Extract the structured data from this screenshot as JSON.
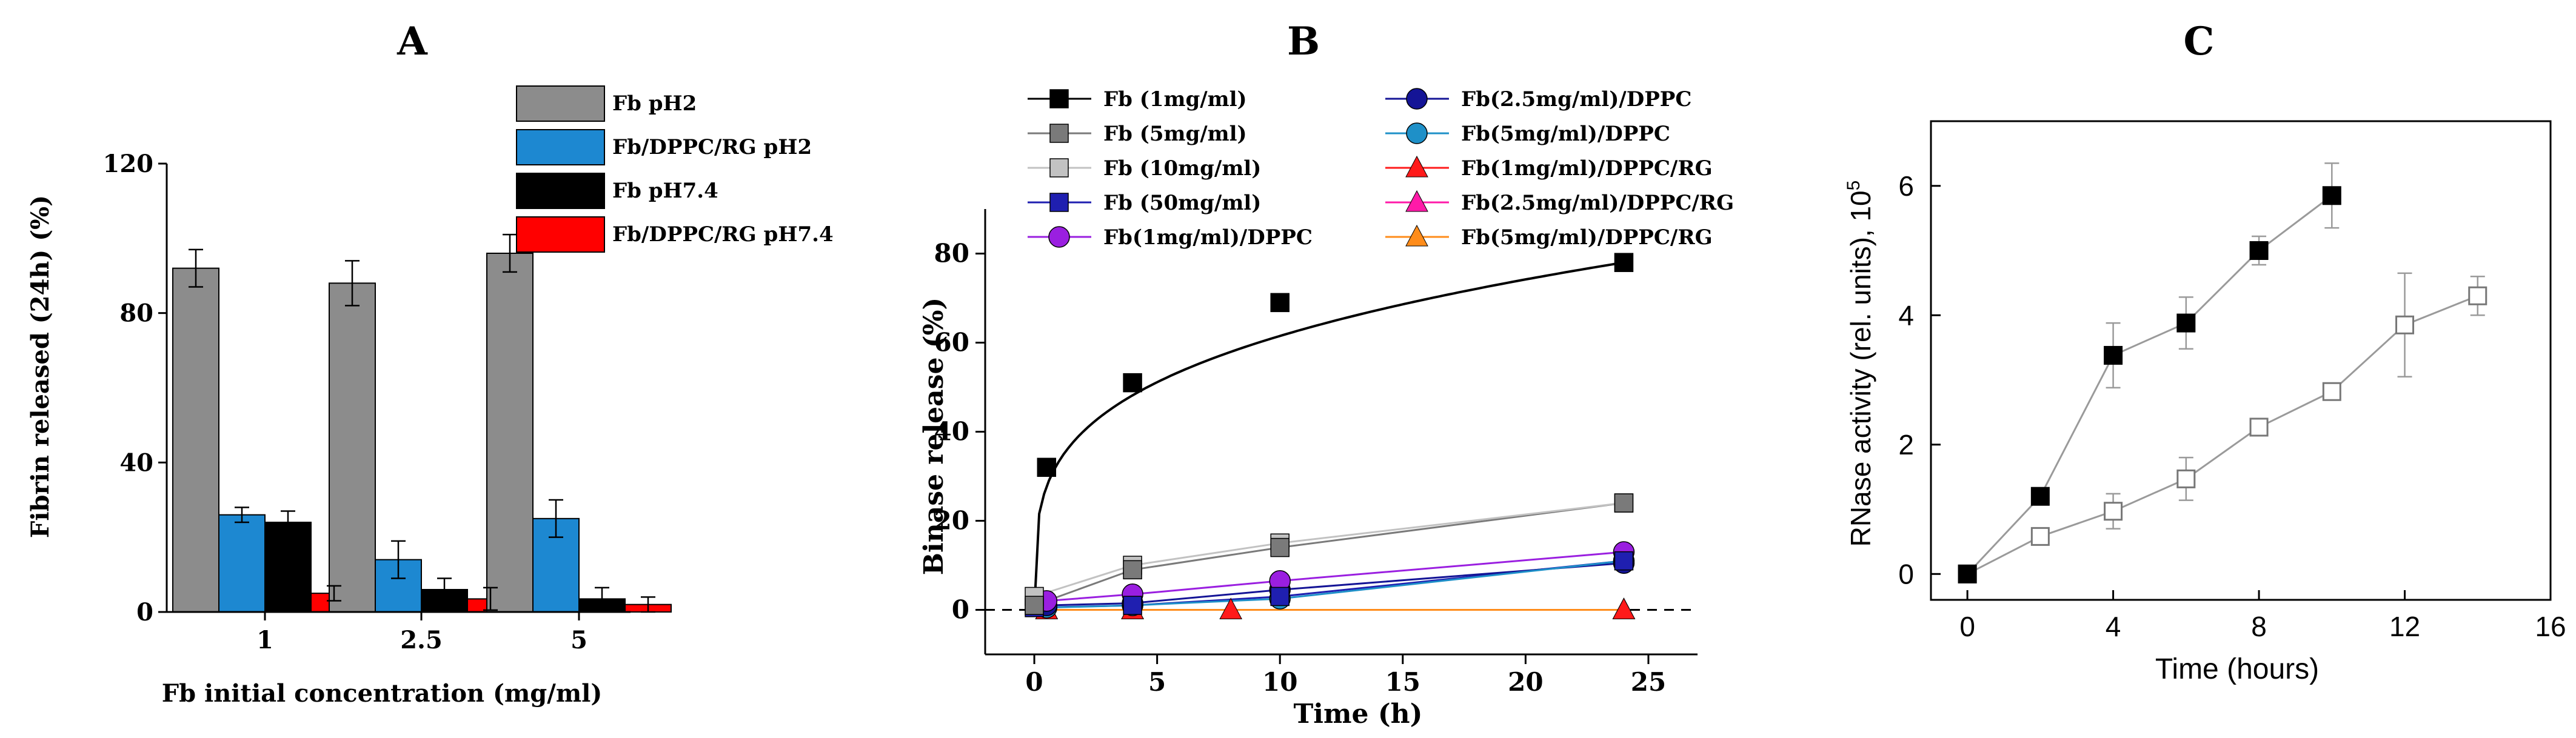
{
  "chart_data": [
    {
      "panel": "A",
      "type": "bar",
      "panel_label": "A",
      "xlabel": "Fb initial concentration (mg/ml)",
      "ylabel": "Fibrin released (24h) (%)",
      "ylim": [
        0,
        120
      ],
      "yticks": [
        "0",
        "40",
        "80",
        "120"
      ],
      "categories": [
        "1",
        "2.5",
        "5"
      ],
      "legend_position": "top-right",
      "series": [
        {
          "name": "Fb pH2",
          "color": "#8c8c8c",
          "values": [
            92,
            88,
            96
          ],
          "errors": [
            5,
            6,
            5
          ]
        },
        {
          "name": "Fb/DPPC/RG pH2",
          "color": "#1d88d1",
          "values": [
            26,
            14,
            25
          ],
          "errors": [
            2,
            5,
            5
          ]
        },
        {
          "name": "Fb pH7.4",
          "color": "#000000",
          "values": [
            24,
            6,
            3.5
          ],
          "errors": [
            3,
            3,
            3
          ]
        },
        {
          "name": "Fb/DPPC/RG pH7.4",
          "color": "#ff0000",
          "values": [
            5,
            3.5,
            2
          ],
          "errors": [
            2,
            3,
            2
          ]
        }
      ]
    },
    {
      "panel": "B",
      "type": "line",
      "panel_label": "B",
      "xlabel": "Time (h)",
      "ylabel": "Binase release (%)",
      "xlim": [
        -2,
        27
      ],
      "ylim": [
        -10,
        90
      ],
      "xticks": [
        "0",
        "5",
        "10",
        "15",
        "20",
        "25"
      ],
      "yticks": [
        "0",
        "20",
        "40",
        "60",
        "80"
      ],
      "reference_line_y": 0,
      "legend_position": "top",
      "series": [
        {
          "name": "Fb (1mg/ml)",
          "color": "#000000",
          "marker": "square",
          "x": [
            0.5,
            4,
            10,
            24
          ],
          "y": [
            32,
            51,
            69,
            78
          ]
        },
        {
          "name": "Fb (5mg/ml)",
          "color": "#7a7a7a",
          "marker": "square",
          "x": [
            0,
            4,
            10,
            24
          ],
          "y": [
            1,
            9,
            14,
            24
          ]
        },
        {
          "name": "Fb (10mg/ml)",
          "color": "#c2c2c2",
          "marker": "square",
          "x": [
            0,
            4,
            10,
            24
          ],
          "y": [
            3,
            10,
            15,
            24
          ]
        },
        {
          "name": "Fb (50mg/ml)",
          "color": "#1f1fb0",
          "marker": "square",
          "x": [
            0,
            4,
            10,
            24
          ],
          "y": [
            0.5,
            1,
            3,
            11
          ]
        },
        {
          "name": "Fb(1mg/ml)/DPPC",
          "color": "#9a1fe0",
          "marker": "circle",
          "x": [
            0.5,
            4,
            10,
            24
          ],
          "y": [
            2,
            3.5,
            6.5,
            13
          ]
        },
        {
          "name": "Fb(2.5mg/ml)/DPPC",
          "color": "#141496",
          "marker": "circle",
          "x": [
            0.5,
            4,
            10,
            24
          ],
          "y": [
            1,
            1.5,
            4.5,
            10.5
          ]
        },
        {
          "name": "Fb(5mg/ml)/DPPC",
          "color": "#1e90c8",
          "marker": "circle",
          "x": [
            0.5,
            4,
            10,
            24
          ],
          "y": [
            0.5,
            1,
            2.5,
            11
          ]
        },
        {
          "name": "Fb(1mg/ml)/DPPC/RG",
          "color": "#ff1a1a",
          "marker": "triangle",
          "x": [
            0.5,
            4,
            8,
            24
          ],
          "y": [
            0,
            0,
            0,
            0
          ]
        },
        {
          "name": "Fb(2.5mg/ml)/DPPC/RG",
          "color": "#ff1aa8",
          "marker": "triangle",
          "x": [
            0.5,
            4,
            24
          ],
          "y": [
            0,
            0,
            0
          ]
        },
        {
          "name": "Fb(5mg/ml)/DPPC/RG",
          "color": "#ff8c1a",
          "marker": "triangle",
          "x": [
            0.5,
            4,
            24
          ],
          "y": [
            0,
            0,
            0
          ]
        }
      ]
    },
    {
      "panel": "C",
      "type": "line",
      "panel_label": "C",
      "xlabel": "Time (hours)",
      "ylabel": "RNase activity (rel. units), 10",
      "ylabel_exponent": "5",
      "xlim": [
        -1,
        16
      ],
      "ylim": [
        -0.4,
        7
      ],
      "xticks": [
        "0",
        "4",
        "8",
        "12",
        "16"
      ],
      "yticks": [
        "0",
        "2",
        "4",
        "6"
      ],
      "series": [
        {
          "name": "filled",
          "color": "#000000",
          "marker": "square-filled",
          "x": [
            0,
            2,
            4,
            6,
            8,
            10
          ],
          "y": [
            0,
            1.2,
            3.38,
            3.88,
            5.0,
            5.85
          ],
          "errors": [
            0,
            0.05,
            0.5,
            0.4,
            0.22,
            0.5
          ]
        },
        {
          "name": "open",
          "color": "#888888",
          "marker": "square-open",
          "x": [
            0,
            2,
            4,
            6,
            8,
            10,
            12,
            14
          ],
          "y": [
            0,
            0.58,
            0.97,
            1.47,
            2.27,
            2.82,
            3.85,
            4.3
          ],
          "errors": [
            0,
            0.05,
            0.27,
            0.33,
            0.12,
            0.05,
            0.8,
            0.3
          ]
        }
      ]
    }
  ]
}
